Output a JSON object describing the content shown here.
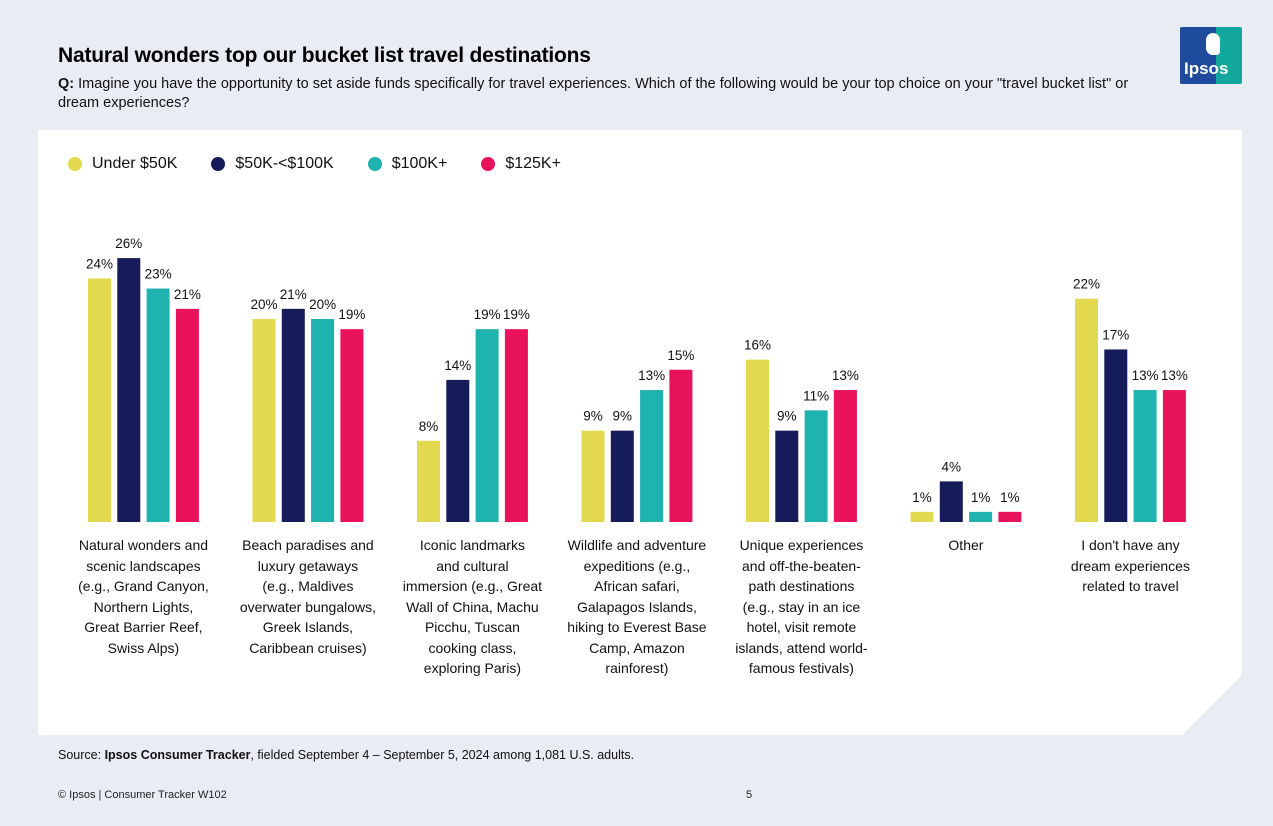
{
  "header": {
    "title": "Natural wonders top our bucket list travel destinations",
    "question_prefix": "Q:",
    "question_text": "Imagine you have the opportunity to set aside funds specifically for travel experiences. Which of the following would be your top choice on your \"travel bucket list\" or dream experiences?"
  },
  "logo": {
    "text": "Ipsos"
  },
  "colors": {
    "series": [
      "#e2d94e",
      "#161b5a",
      "#1eb3ae",
      "#e8125d"
    ],
    "background": "#e9ecf2",
    "panel": "#ffffff"
  },
  "chart_data": {
    "type": "bar",
    "title": "Natural wonders top our bucket list travel destinations",
    "xlabel": "",
    "ylabel": "",
    "ylim": [
      0,
      30
    ],
    "legend_position": "top-left",
    "categories": [
      "Natural wonders and scenic landscapes (e.g., Grand Canyon, Northern Lights, Great Barrier Reef, Swiss Alps)",
      "Beach paradises and luxury getaways (e.g., Maldives overwater bungalows, Greek Islands, Caribbean cruises)",
      "Iconic landmarks and cultural immersion (e.g., Great Wall of China, Machu Picchu, Tuscan cooking class, exploring Paris)",
      "Wildlife and adventure expeditions (e.g., African safari, Galapagos Islands, hiking to Everest Base Camp, Amazon rainforest)",
      "Unique experiences and off-the-beaten-path destinations (e.g., stay in an ice hotel, visit remote islands, attend world-famous festivals)",
      "Other",
      "I don't have any dream experiences related to travel"
    ],
    "category_lines": [
      [
        "Natural wonders and",
        "scenic landscapes",
        "(e.g., Grand Canyon,",
        "Northern Lights,",
        "Great Barrier Reef,",
        "Swiss Alps)"
      ],
      [
        "Beach paradises and",
        "luxury getaways",
        "(e.g., Maldives",
        "overwater bungalows,",
        "Greek Islands,",
        "Caribbean cruises)"
      ],
      [
        "Iconic landmarks",
        "and cultural",
        "immersion (e.g., Great",
        "Wall of China, Machu",
        "Picchu, Tuscan",
        "cooking class,",
        "exploring Paris)"
      ],
      [
        "Wildlife and adventure",
        "expeditions (e.g.,",
        "African safari,",
        "Galapagos Islands,",
        "hiking to Everest Base",
        "Camp, Amazon",
        "rainforest)"
      ],
      [
        "Unique experiences",
        "and off-the-beaten-",
        "path destinations",
        "(e.g., stay in an ice",
        "hotel, visit remote",
        "islands, attend world-",
        "famous festivals)"
      ],
      [
        "Other"
      ],
      [
        "I don't have any",
        "dream experiences",
        "related to travel"
      ]
    ],
    "series": [
      {
        "name": "Under $50K",
        "values": [
          24,
          20,
          8,
          9,
          16,
          1,
          22
        ]
      },
      {
        "name": "$50K-<$100K",
        "values": [
          26,
          21,
          14,
          9,
          9,
          4,
          17
        ]
      },
      {
        "name": "$100K+",
        "values": [
          23,
          20,
          19,
          13,
          11,
          1,
          13
        ]
      },
      {
        "name": "$125K+",
        "values": [
          21,
          19,
          19,
          15,
          13,
          1,
          13
        ]
      }
    ],
    "value_suffix": "%"
  },
  "footer": {
    "source_prefix": "Source:",
    "source_bold": "Ipsos Consumer Tracker",
    "source_rest": ", fielded September 4 – September 5, 2024 among 1,081 U.S. adults.",
    "copyright": "© Ipsos | Consumer Tracker W102",
    "page_number": "5"
  }
}
